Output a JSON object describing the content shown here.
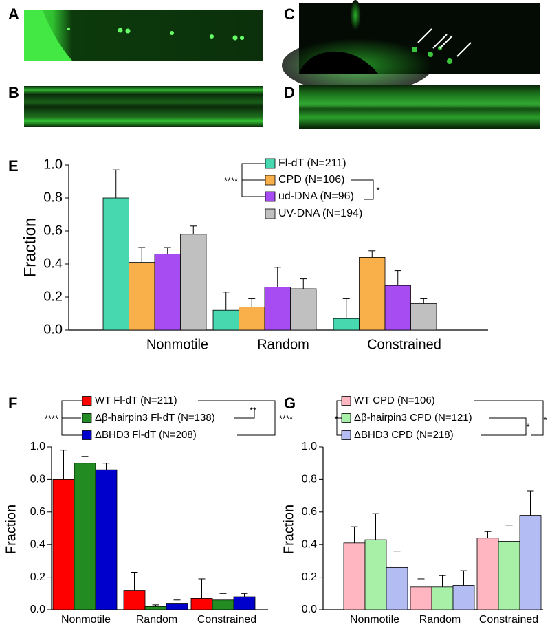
{
  "images": [
    {
      "label": "A"
    },
    {
      "label": "B"
    },
    {
      "label": "C"
    },
    {
      "label": "D"
    }
  ],
  "chart_data": [
    {
      "type": "bar",
      "panel_label": "E",
      "ylabel": "Fraction",
      "categories": [
        "Nonmotile",
        "Random",
        "Constrained"
      ],
      "series": [
        {
          "name": "Fl-dT (N=211)",
          "color": "#48d8b0",
          "values": [
            0.8,
            0.12,
            0.07
          ],
          "errors": [
            0.17,
            0.11,
            0.12
          ]
        },
        {
          "name": "CPD (N=106)",
          "color": "#f9b04a",
          "values": [
            0.41,
            0.14,
            0.44
          ],
          "errors": [
            0.09,
            0.05,
            0.04
          ]
        },
        {
          "name": "ud-DNA (N=96)",
          "color": "#a64cf2",
          "values": [
            0.46,
            0.26,
            0.27
          ],
          "errors": [
            0.04,
            0.12,
            0.09
          ]
        },
        {
          "name": "UV-DNA (N=194)",
          "color": "#c0c0c0",
          "values": [
            0.58,
            0.25,
            0.16
          ],
          "errors": [
            0.05,
            0.06,
            0.03
          ]
        }
      ],
      "ylim": [
        0,
        1.0
      ],
      "yticks": [
        {
          "value": 0,
          "label": "0.0"
        },
        {
          "value": 0.2,
          "label": "0.2"
        },
        {
          "value": 0.4,
          "label": "0.4"
        },
        {
          "value": 0.6,
          "label": "0.6"
        },
        {
          "value": 0.8,
          "label": "0.8"
        },
        {
          "value": 1.0,
          "label": "1.0"
        }
      ],
      "annotations": [
        "****",
        "*"
      ]
    },
    {
      "type": "bar",
      "panel_label": "F",
      "ylabel": "Fraction",
      "categories": [
        "Nonmotile",
        "Random",
        "Constrained"
      ],
      "series": [
        {
          "name": "WT Fl-dT (N=211)",
          "color": "#ff0000",
          "values": [
            0.8,
            0.12,
            0.07
          ],
          "errors": [
            0.18,
            0.11,
            0.12
          ]
        },
        {
          "name": "Δβ-hairpin3 Fl-dT (N=138)",
          "color": "#228b22",
          "values": [
            0.9,
            0.02,
            0.06
          ],
          "errors": [
            0.04,
            0.01,
            0.04
          ]
        },
        {
          "name": "ΔBHD3 Fl-dT (N=208)",
          "color": "#0000cc",
          "values": [
            0.86,
            0.04,
            0.08
          ],
          "errors": [
            0.04,
            0.02,
            0.02
          ]
        }
      ],
      "ylim": [
        0,
        1.0
      ],
      "yticks": [
        {
          "value": 0,
          "label": "0.0"
        },
        {
          "value": 0.2,
          "label": "0.2"
        },
        {
          "value": 0.4,
          "label": "0.4"
        },
        {
          "value": 0.6,
          "label": "0.6"
        },
        {
          "value": 0.8,
          "label": "0.8"
        },
        {
          "value": 1.0,
          "label": "1.0"
        }
      ],
      "annotations": [
        "****",
        "**",
        "****"
      ]
    },
    {
      "type": "bar",
      "panel_label": "G",
      "ylabel": "Fraction",
      "categories": [
        "Nonmotile",
        "Random",
        "Constrained"
      ],
      "series": [
        {
          "name": "WT CPD (N=106)",
          "color": "#ffb6c1",
          "values": [
            0.41,
            0.14,
            0.44
          ],
          "errors": [
            0.1,
            0.05,
            0.04
          ]
        },
        {
          "name": "Δβ-hairpin3 CPD (N=121)",
          "color": "#a8f0a8",
          "values": [
            0.43,
            0.14,
            0.42
          ],
          "errors": [
            0.16,
            0.07,
            0.1
          ]
        },
        {
          "name": "ΔBHD3 CPD (N=218)",
          "color": "#b4bcf4",
          "values": [
            0.26,
            0.15,
            0.58
          ],
          "errors": [
            0.1,
            0.09,
            0.15
          ]
        }
      ],
      "ylim": [
        0,
        1.0
      ],
      "yticks": [
        {
          "value": 0,
          "label": "0.0"
        },
        {
          "value": 0.2,
          "label": "0.2"
        },
        {
          "value": 0.4,
          "label": "0.4"
        },
        {
          "value": 0.6,
          "label": "0.6"
        },
        {
          "value": 0.8,
          "label": "0.8"
        },
        {
          "value": 1.0,
          "label": "1.0"
        }
      ],
      "annotations": [
        "*",
        "*",
        "*"
      ]
    }
  ]
}
